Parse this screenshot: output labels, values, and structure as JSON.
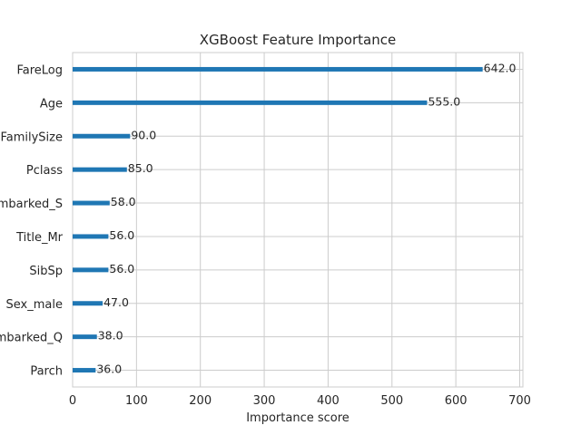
{
  "chart_data": {
    "type": "bar",
    "orientation": "horizontal",
    "title": "XGBoost Feature Importance",
    "xlabel": "Importance score",
    "ylabel": "",
    "xlim": [
      0,
      705
    ],
    "xticks": [
      0,
      100,
      200,
      300,
      400,
      500,
      600,
      700
    ],
    "grid": true,
    "legend": "none",
    "bar_color": "#1f77b4",
    "categories": [
      "FareLog",
      "Age",
      "FamilySize",
      "Pclass",
      "Embarked_S",
      "Title_Mr",
      "SibSp",
      "Sex_male",
      "Embarked_Q",
      "Parch"
    ],
    "values": [
      642.0,
      555.0,
      90.0,
      85.0,
      58.0,
      56.0,
      56.0,
      47.0,
      38.0,
      36.0
    ],
    "data_labels": [
      "642.0",
      "555.0",
      "90.0",
      "85.0",
      "58.0",
      "56.0",
      "56.0",
      "47.0",
      "38.0",
      "36.0"
    ]
  }
}
